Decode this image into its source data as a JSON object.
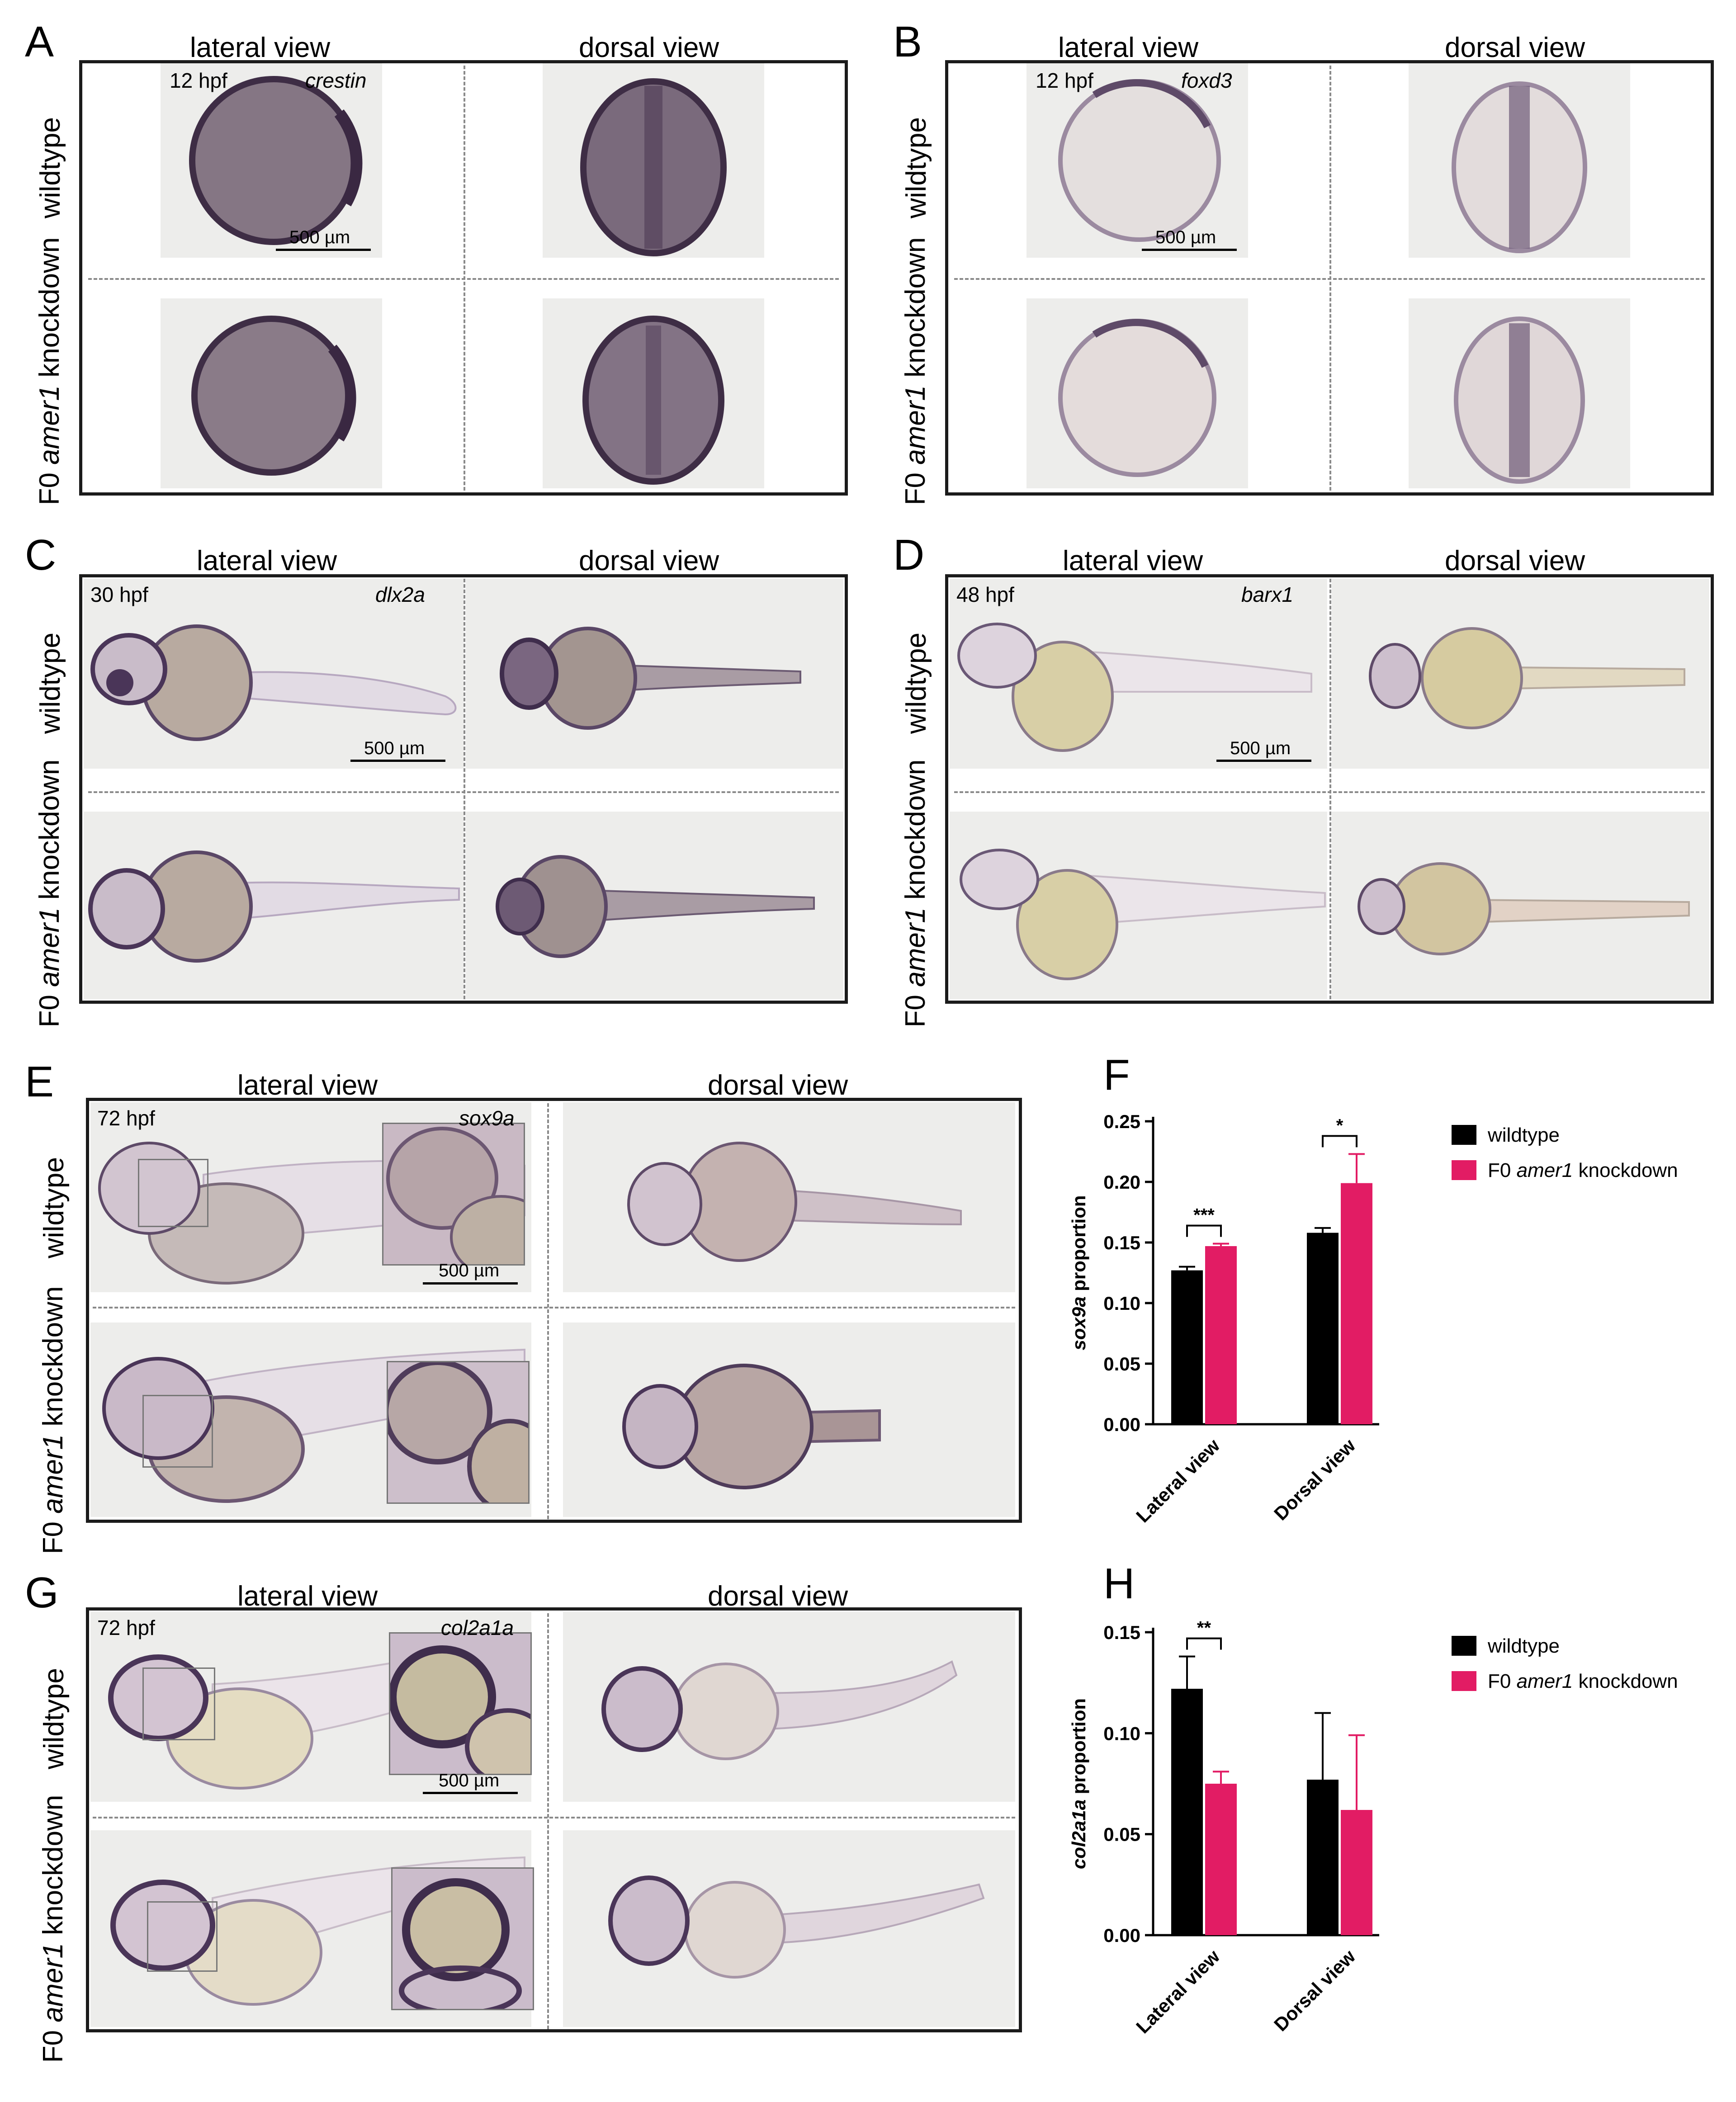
{
  "colors": {
    "wildtype": "#000000",
    "knockdown": "#e21c64",
    "stain": "#4a3558",
    "frame": "#1b1b1b"
  },
  "labels": {
    "lateral_view": "lateral view",
    "dorsal_view": "dorsal view",
    "wildtype": "wildtype",
    "knockdown_prefix": "F0 ",
    "knockdown_gene": "amer1",
    "knockdown_suffix": " knockdown",
    "scale_bar": "500 µm"
  },
  "panels": {
    "A": {
      "letter": "A",
      "stage": "12 hpf",
      "gene": "crestin"
    },
    "B": {
      "letter": "B",
      "stage": "12 hpf",
      "gene": "foxd3"
    },
    "C": {
      "letter": "C",
      "stage": "30 hpf",
      "gene": "dlx2a"
    },
    "D": {
      "letter": "D",
      "stage": "48 hpf",
      "gene": "barx1"
    },
    "E": {
      "letter": "E",
      "stage": "72 hpf",
      "gene": "sox9a"
    },
    "G": {
      "letter": "G",
      "stage": "72 hpf",
      "gene": "col2a1a"
    }
  },
  "chart_data": [
    {
      "panel": "F",
      "type": "bar",
      "categories": [
        "Lateral view",
        "Dorsal view"
      ],
      "ylabel_gene": "sox9a",
      "ylabel_suffix": " proportion",
      "ylim": [
        0,
        0.25
      ],
      "yticks": [
        "0.00",
        "0.05",
        "0.10",
        "0.15",
        "0.20",
        "0.25"
      ],
      "series": [
        {
          "name": "wildtype",
          "values": [
            0.127,
            0.158
          ],
          "errors": [
            0.003,
            0.004
          ]
        },
        {
          "name_prefix": "F0 ",
          "name_gene": "amer1",
          "name_suffix": " knockdown",
          "values": [
            0.147,
            0.199
          ],
          "errors": [
            0.002,
            0.024
          ]
        }
      ],
      "significance": [
        "***",
        "*"
      ]
    },
    {
      "panel": "H",
      "type": "bar",
      "categories": [
        "Lateral view",
        "Dorsal view"
      ],
      "ylabel_gene": "col2a1a",
      "ylabel_suffix": " proportion",
      "ylim": [
        0,
        0.15
      ],
      "yticks": [
        "0.00",
        "0.05",
        "0.10",
        "0.15"
      ],
      "series": [
        {
          "name": "wildtype",
          "values": [
            0.122,
            0.077
          ],
          "errors": [
            0.016,
            0.033
          ]
        },
        {
          "name_prefix": "F0 ",
          "name_gene": "amer1",
          "name_suffix": " knockdown",
          "values": [
            0.075,
            0.062
          ],
          "errors": [
            0.006,
            0.037
          ]
        }
      ],
      "significance": [
        "**",
        ""
      ]
    }
  ]
}
